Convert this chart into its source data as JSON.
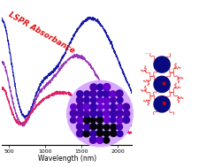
{
  "title": "LSPR Absorbance",
  "title_color": "#dd1111",
  "xlabel": "Wavelength (nm)",
  "xlim": [
    400,
    2200
  ],
  "ylim": [
    -0.05,
    1.0
  ],
  "bg_color": "#ffffff",
  "curve1_color": "#1515aa",
  "curve2_color": "#9933bb",
  "curve3_color": "#dd2266",
  "ligand_color": "#ee3333",
  "core_color": "#0a0a80",
  "dot_color": "#cc0000",
  "tem_bg": "#d8a8ff",
  "tem_p1": "#6600cc",
  "tem_p2": "#4400aa",
  "tem_p3": "#3300aa",
  "tem_dark": "#050510",
  "xticks": [
    500,
    1000,
    1500,
    2000
  ],
  "xtick_labels": [
    "500",
    "1000",
    "1500",
    "2000"
  ]
}
